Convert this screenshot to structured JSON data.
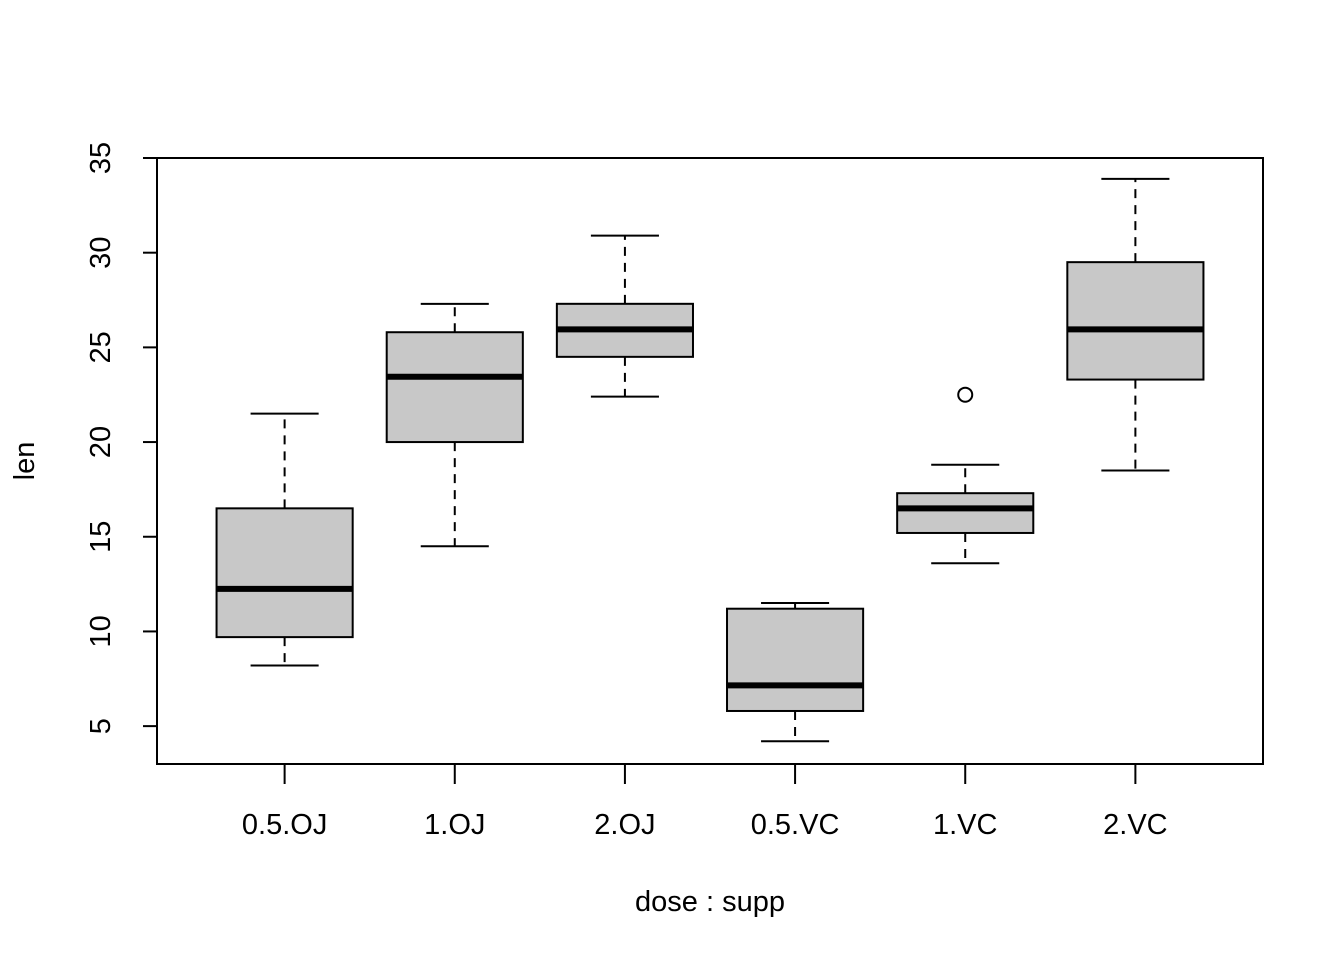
{
  "chart_data": {
    "type": "boxplot",
    "xlabel": "dose : supp",
    "ylabel": "len",
    "ylim": [
      3,
      35
    ],
    "yticks": [
      5,
      10,
      15,
      20,
      25,
      30,
      35
    ],
    "grid": false,
    "categories": [
      "0.5.OJ",
      "1.OJ",
      "2.OJ",
      "0.5.VC",
      "1.VC",
      "2.VC"
    ],
    "boxes": [
      {
        "label": "0.5.OJ",
        "whisker_low": 8.2,
        "q1": 9.7,
        "median": 12.25,
        "q3": 16.5,
        "whisker_high": 21.5,
        "outliers": []
      },
      {
        "label": "1.OJ",
        "whisker_low": 14.5,
        "q1": 20.0,
        "median": 23.45,
        "q3": 25.8,
        "whisker_high": 27.3,
        "outliers": []
      },
      {
        "label": "2.OJ",
        "whisker_low": 22.4,
        "q1": 24.5,
        "median": 25.95,
        "q3": 27.3,
        "whisker_high": 30.9,
        "outliers": []
      },
      {
        "label": "0.5.VC",
        "whisker_low": 4.2,
        "q1": 5.8,
        "median": 7.15,
        "q3": 11.2,
        "whisker_high": 11.5,
        "outliers": []
      },
      {
        "label": "1.VC",
        "whisker_low": 13.6,
        "q1": 15.2,
        "median": 16.5,
        "q3": 17.3,
        "whisker_high": 18.8,
        "outliers": [
          22.5
        ]
      },
      {
        "label": "2.VC",
        "whisker_low": 18.5,
        "q1": 23.3,
        "median": 25.95,
        "q3": 29.5,
        "whisker_high": 33.9,
        "outliers": []
      }
    ],
    "colors": {
      "box_fill": "#c8c8c8",
      "stroke": "#000000"
    }
  }
}
